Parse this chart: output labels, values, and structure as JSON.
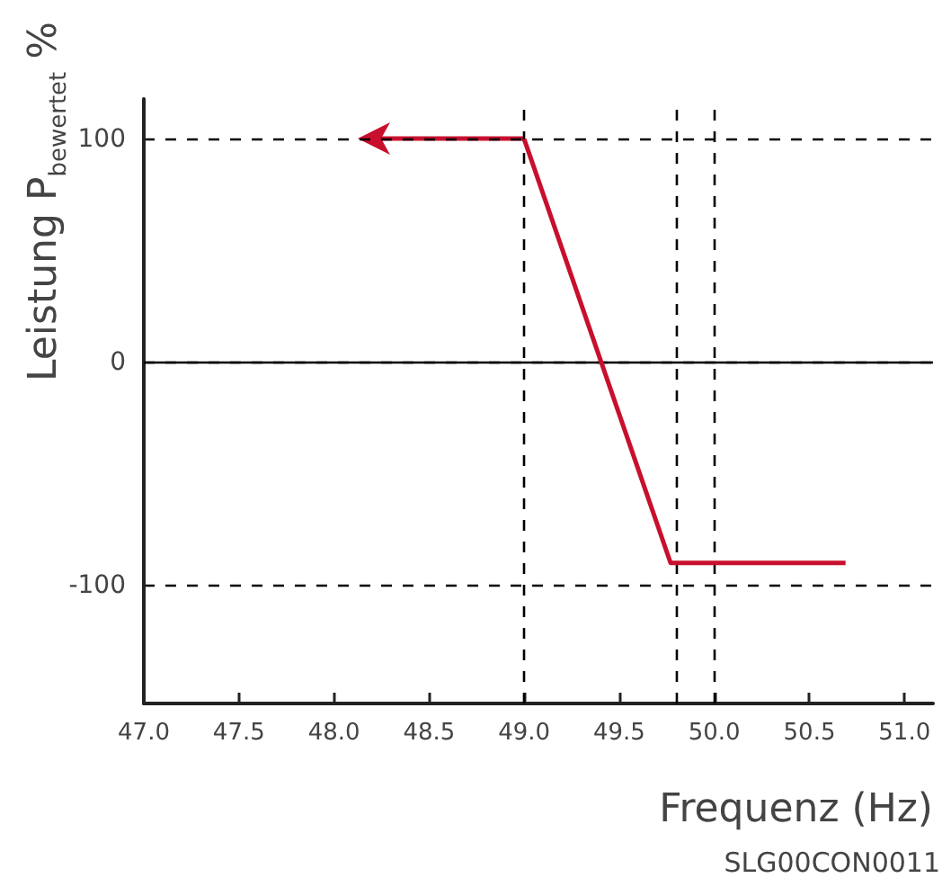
{
  "chart_data": {
    "type": "line",
    "xlabel": "Frequenz (Hz)",
    "ylabel": "Leistung P$_{bewertet}$ %",
    "annotations": [
      "SLG00CON0011"
    ],
    "x": [
      49.0,
      49.77,
      50.69
    ],
    "series": [
      {
        "color": "#c8102e",
        "values": [
          100,
          -90,
          -90
        ]
      }
    ],
    "xlim": [
      47.0,
      51.15
    ],
    "xticks": [
      {
        "value": 47.0,
        "label": "47.0"
      },
      {
        "value": 47.5,
        "label": "47.5"
      },
      {
        "value": 48.0,
        "label": "48.0"
      },
      {
        "value": 48.5,
        "label": "48.5"
      },
      {
        "value": 49.0,
        "label": "49.0"
      },
      {
        "value": 49.5,
        "label": "49.5"
      },
      {
        "value": 50.0,
        "label": "50.0"
      },
      {
        "value": 50.5,
        "label": "50.5"
      },
      {
        "value": 51.0,
        "label": "51.0"
      }
    ],
    "ylim": [
      -153,
      118
    ],
    "yticks": [
      -100,
      0,
      100
    ],
    "ref_lines": [
      {
        "axis": "y",
        "value": 0,
        "line_style": "solid",
        "color": "#000000"
      },
      {
        "axis": "x",
        "value": 49.0,
        "line_style": "dashed",
        "color": "#000000"
      },
      {
        "axis": "x",
        "value": 49.8,
        "line_style": "dashed",
        "color": "#000000"
      },
      {
        "axis": "x",
        "value": 50.0,
        "line_style": "dashed",
        "color": "#000000"
      }
    ],
    "grid": "y"
  }
}
